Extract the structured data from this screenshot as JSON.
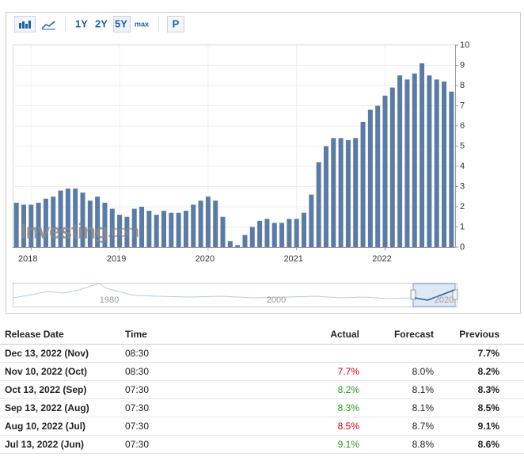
{
  "toolbar": {
    "ranges": [
      "1Y",
      "2Y",
      "5Y",
      "max"
    ],
    "selected": 2,
    "extra": "P"
  },
  "chart_data": {
    "type": "bar",
    "watermark": [
      "Investing",
      ".com"
    ],
    "categories": [
      null,
      null,
      "2018",
      null,
      null,
      null,
      null,
      null,
      null,
      null,
      null,
      null,
      null,
      null,
      "2019",
      null,
      null,
      null,
      null,
      null,
      null,
      null,
      null,
      null,
      null,
      null,
      "2020",
      null,
      null,
      null,
      null,
      null,
      null,
      null,
      null,
      null,
      null,
      null,
      "2021",
      null,
      null,
      null,
      null,
      null,
      null,
      null,
      null,
      null,
      null,
      null,
      "2022",
      null,
      null,
      null,
      null,
      null,
      null,
      null,
      null,
      null
    ],
    "values": [
      2.2,
      2.1,
      2.1,
      2.2,
      2.4,
      2.5,
      2.8,
      2.9,
      2.9,
      2.7,
      2.3,
      2.5,
      2.2,
      1.9,
      1.6,
      1.5,
      1.9,
      2.0,
      1.8,
      1.6,
      1.8,
      1.7,
      1.7,
      1.8,
      2.1,
      2.3,
      2.5,
      2.3,
      1.5,
      0.3,
      0.1,
      0.6,
      1.0,
      1.3,
      1.4,
      1.2,
      1.2,
      1.4,
      1.4,
      1.7,
      2.6,
      4.2,
      5.0,
      5.4,
      5.4,
      5.3,
      5.4,
      6.2,
      6.8,
      7.0,
      7.5,
      7.9,
      8.5,
      8.3,
      8.6,
      9.1,
      8.5,
      8.3,
      8.2,
      7.7
    ],
    "color": "#5a7ba6",
    "ylim": [
      0,
      10
    ],
    "yticks": [
      0,
      1,
      2,
      3,
      4,
      5,
      6,
      7,
      8,
      9,
      10
    ],
    "grid": true
  },
  "navigator": {
    "labels": [
      "1980",
      "2000",
      "2020"
    ]
  },
  "table": {
    "headers": [
      "Release Date",
      "Time",
      "Actual",
      "Forecast",
      "Previous"
    ],
    "rows": [
      [
        "Dec 13, 2022 (Nov)",
        "08:30",
        null,
        null,
        "7.7%"
      ],
      [
        "Nov 10, 2022 (Oct)",
        "08:30",
        "7.7%",
        "8.0%",
        "8.2%"
      ],
      [
        "Oct 13, 2022 (Sep)",
        "07:30",
        "8.2%",
        "8.1%",
        "8.3%"
      ],
      [
        "Sep 13, 2022 (Aug)",
        "07:30",
        "8.3%",
        "8.1%",
        "8.5%"
      ],
      [
        "Aug 10, 2022 (Jul)",
        "07:30",
        "8.5%",
        "8.7%",
        "9.1%"
      ],
      [
        "Jul 13, 2022 (Jun)",
        "07:30",
        "9.1%",
        "8.8%",
        "8.6%"
      ]
    ]
  }
}
